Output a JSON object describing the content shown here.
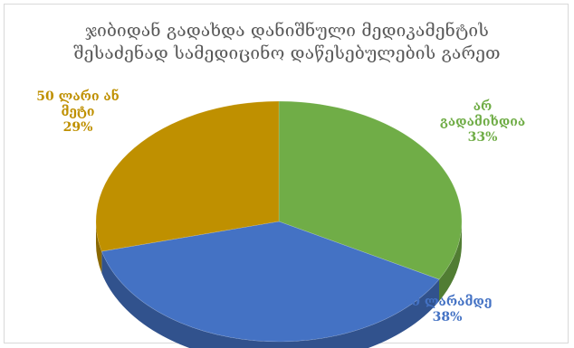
{
  "chart_data": {
    "type": "pie",
    "title_lines": [
      "ჯიბიდან გადახდა დანიშნული მედიკამენტის",
      "შესაძენად სამედიცინო დაწესებულების გარეთ"
    ],
    "categories": [
      "არ გადამიხდია",
      "50 ლარამდე",
      "50 ლარი ან მეტი"
    ],
    "values": [
      33,
      38,
      29
    ],
    "labels": [
      {
        "lines": [
          "არ",
          "გადამიხდია"
        ],
        "percent": "33%"
      },
      {
        "lines": [
          "50 ლარამდე"
        ],
        "percent": "38%"
      },
      {
        "lines": [
          "50 ლარი ან",
          "მეტი"
        ],
        "percent": "29%"
      }
    ],
    "colors": [
      "#70ad47",
      "#4472c4",
      "#bf9000"
    ],
    "label_colors": [
      "#70ad47",
      "#4472c4",
      "#bf9000"
    ],
    "style": "3d-pie",
    "legend": "none"
  }
}
